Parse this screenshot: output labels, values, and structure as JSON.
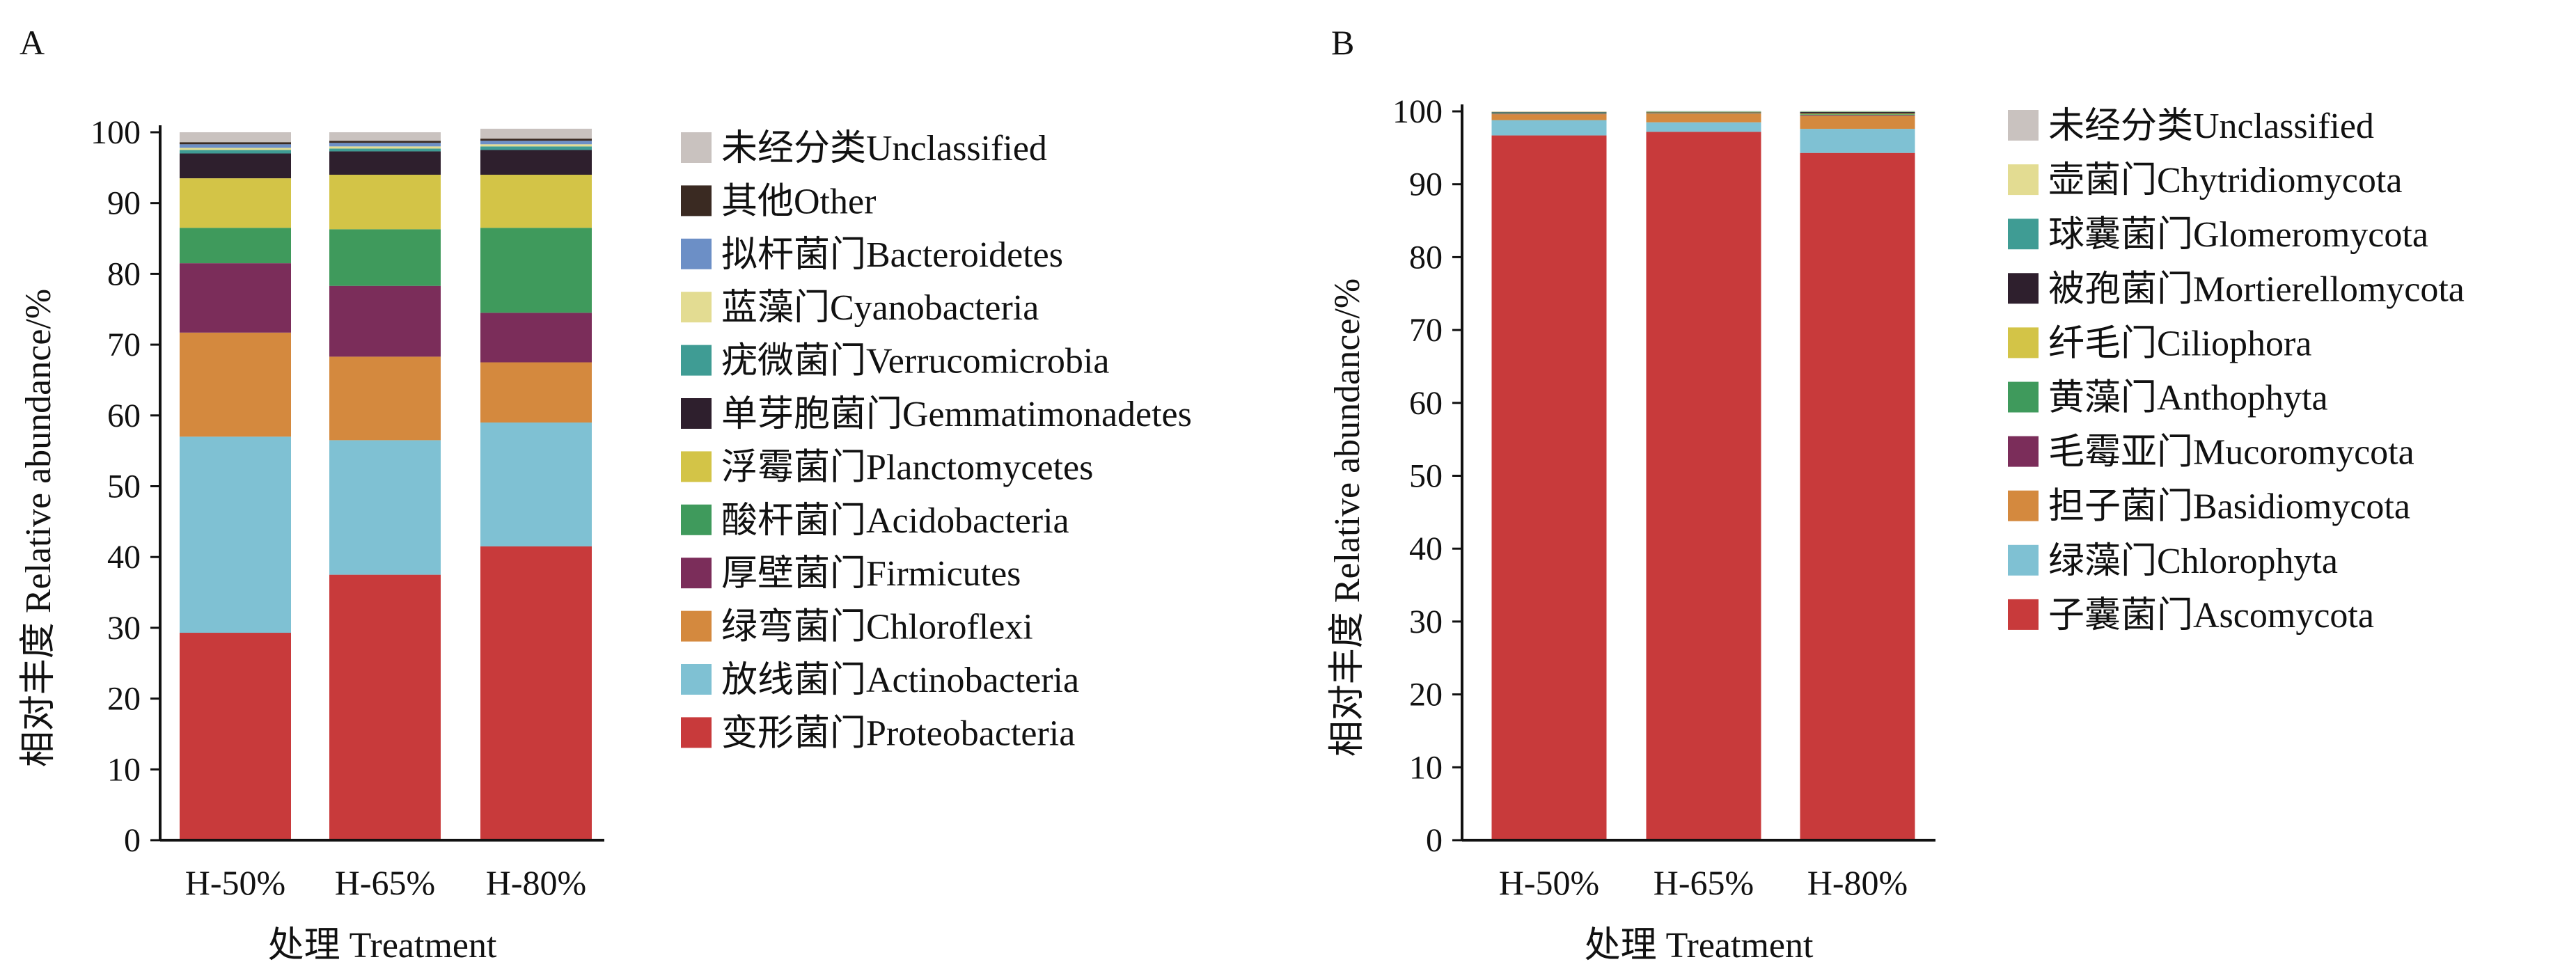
{
  "panels": [
    {
      "id": "A",
      "chart_data": {
        "type": "bar",
        "stacked": true,
        "panel_label": "A",
        "categories": [
          "H-50%",
          "H-65%",
          "H-80%"
        ],
        "xlabel": "处理 Treatment",
        "ylabel": "相对丰度 Relative abundance/%",
        "ylim": [
          0,
          100
        ],
        "yticks": [
          0,
          10,
          20,
          30,
          40,
          50,
          60,
          70,
          80,
          90,
          100
        ],
        "grid": false,
        "legend_position": "right",
        "series": [
          {
            "name": "变形菌门Proteobacteria",
            "color": "#c83a3b",
            "values": [
              29.3,
              37.5,
              41.5
            ]
          },
          {
            "name": "放线菌门Actinobacteria",
            "color": "#7fc1d3",
            "values": [
              27.7,
              19.0,
              17.5
            ]
          },
          {
            "name": "绿弯菌门Chloroflexi",
            "color": "#d4893e",
            "values": [
              14.7,
              11.8,
              8.5
            ]
          },
          {
            "name": "厚壁菌门Firmicutes",
            "color": "#7b2d5a",
            "values": [
              9.8,
              10.0,
              7.0
            ]
          },
          {
            "name": "酸杆菌门Acidobacteria",
            "color": "#3f9a5c",
            "values": [
              5.0,
              8.0,
              12.0
            ]
          },
          {
            "name": "浮霉菌门Planctomycetes",
            "color": "#d3c447",
            "values": [
              7.0,
              7.7,
              7.5
            ]
          },
          {
            "name": "单芽胞菌门Gemmatimonadetes",
            "color": "#2e1f2d",
            "values": [
              3.5,
              3.3,
              3.5
            ]
          },
          {
            "name": "疣微菌门Verrucomicrobia",
            "color": "#3f9c94",
            "values": [
              0.5,
              0.4,
              0.5
            ]
          },
          {
            "name": "蓝藻门Cyanobacteria",
            "color": "#e3dc92",
            "values": [
              0.3,
              0.3,
              0.3
            ]
          },
          {
            "name": "拟杆菌门Bacteroidetes",
            "color": "#6c8fc6",
            "values": [
              0.5,
              0.5,
              0.5
            ]
          },
          {
            "name": "其他Other",
            "color": "#3a2a22",
            "values": [
              0.3,
              0.3,
              0.3
            ]
          },
          {
            "name": "未经分类Unclassified",
            "color": "#c9c2bf",
            "values": [
              1.4,
              1.2,
              1.4
            ]
          }
        ]
      }
    },
    {
      "id": "B",
      "chart_data": {
        "type": "bar",
        "stacked": true,
        "panel_label": "B",
        "categories": [
          "H-50%",
          "H-65%",
          "H-80%"
        ],
        "xlabel": "处理 Treatment",
        "ylabel": "相对丰度 Relative abundance/%",
        "ylim": [
          0,
          100
        ],
        "yticks": [
          0,
          10,
          20,
          30,
          40,
          50,
          60,
          70,
          80,
          90,
          100
        ],
        "grid": false,
        "legend_position": "right",
        "series": [
          {
            "name": "子囊菌门Ascomycota",
            "color": "#c83a3b",
            "values": [
              96.7,
              97.2,
              94.3
            ]
          },
          {
            "name": "绿藻门Chlorophyta",
            "color": "#7fc1d3",
            "values": [
              2.1,
              1.3,
              3.3
            ]
          },
          {
            "name": "担子菌门Basidiomycota",
            "color": "#d4893e",
            "values": [
              0.8,
              1.2,
              1.8
            ]
          },
          {
            "name": "毛霉亚门Mucoromycota",
            "color": "#7b2d5a",
            "values": [
              0.05,
              0.05,
              0.1
            ]
          },
          {
            "name": "黄藻门Anthophyta",
            "color": "#3f9a5c",
            "values": [
              0.05,
              0.05,
              0.1
            ]
          },
          {
            "name": "纤毛门Ciliophora",
            "color": "#d3c447",
            "values": [
              0.05,
              0.05,
              0.1
            ]
          },
          {
            "name": "被孢菌门Mortierellomycota",
            "color": "#2e1f2d",
            "values": [
              0.1,
              0.05,
              0.2
            ]
          },
          {
            "name": "球囊菌门Glomeromycota",
            "color": "#3f9c94",
            "values": [
              0.05,
              0.05,
              0.05
            ]
          },
          {
            "name": "壶菌门Chytridiomycota",
            "color": "#e3dc92",
            "values": [
              0.05,
              0.05,
              0.05
            ]
          },
          {
            "name": "未经分类Unclassified",
            "color": "#c9c2bf",
            "values": [
              0.05,
              0.05,
              0.05
            ]
          }
        ]
      }
    }
  ]
}
